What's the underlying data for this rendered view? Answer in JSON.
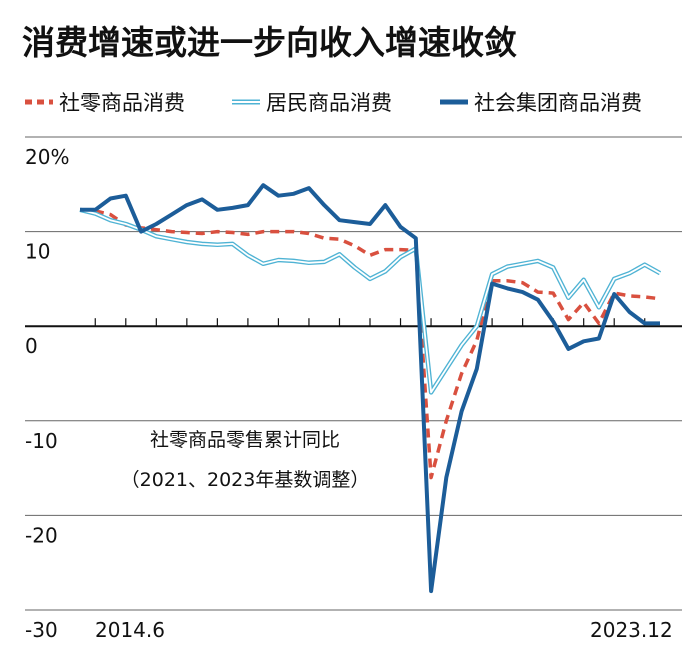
{
  "chart_data": {
    "type": "line",
    "title": "消费增速或进一步向收入增速收敛",
    "annotation": [
      "社零商品零售累计同比",
      "（2021、2023年基数调整）"
    ],
    "categories": [
      "2014.6",
      null,
      null,
      null,
      null,
      null,
      null,
      null,
      null,
      null,
      null,
      null,
      null,
      null,
      null,
      null,
      null,
      null,
      null,
      null,
      null,
      null,
      null,
      null,
      null,
      null,
      null,
      null,
      null,
      null,
      null,
      null,
      null,
      null,
      null,
      null,
      null,
      null,
      "2023.12"
    ],
    "series": [
      {
        "name": "社零商品消费",
        "color": "#d9503f",
        "dash": true,
        "values": [
          12.3,
          12.2,
          11.8,
          10.7,
          10.4,
          10.2,
          10.0,
          9.9,
          9.8,
          10.0,
          9.9,
          9.7,
          10.0,
          10.0,
          10.0,
          9.8,
          9.3,
          9.2,
          8.5,
          7.5,
          8.1,
          8.1,
          8.0,
          -16,
          -10,
          -5,
          -1.5,
          4.8,
          4.8,
          4.6,
          3.6,
          3.5,
          0.7,
          2.5,
          0.3,
          3.5,
          3.2,
          3.1,
          2.9
        ]
      },
      {
        "name": "居民商品消费",
        "color": "#4fb3d4",
        "outline": true,
        "values": [
          12.3,
          11.9,
          11.2,
          10.8,
          10.2,
          9.5,
          9.2,
          8.9,
          8.7,
          8.6,
          8.7,
          7.5,
          6.6,
          7.0,
          6.9,
          6.7,
          6.8,
          7.6,
          6.2,
          5.0,
          5.8,
          7.3,
          8.2,
          -7,
          -4.5,
          -2,
          0,
          5.5,
          6.3,
          6.6,
          6.9,
          6.2,
          3.0,
          4.9,
          2.0,
          5.0,
          5.6,
          6.5,
          5.6
        ]
      },
      {
        "name": "社会集团商品消费",
        "color": "#1c5d99",
        "values": [
          12.3,
          12.3,
          13.5,
          13.8,
          10.0,
          10.8,
          11.8,
          12.8,
          13.4,
          12.3,
          12.5,
          12.8,
          14.9,
          13.8,
          14.0,
          14.6,
          12.8,
          11.2,
          11.0,
          10.8,
          12.8,
          10.5,
          9.3,
          -28,
          -16,
          -9,
          -4.5,
          4.5,
          4.0,
          3.6,
          2.8,
          0.5,
          -2.4,
          -1.6,
          -1.3,
          3.4,
          1.5,
          0.3,
          0.3
        ]
      }
    ],
    "ylim": [
      -30,
      20
    ],
    "yticks": [
      {
        "value": 20,
        "label": "20%"
      },
      10,
      0,
      -10,
      -20,
      -30
    ],
    "grid": true
  }
}
